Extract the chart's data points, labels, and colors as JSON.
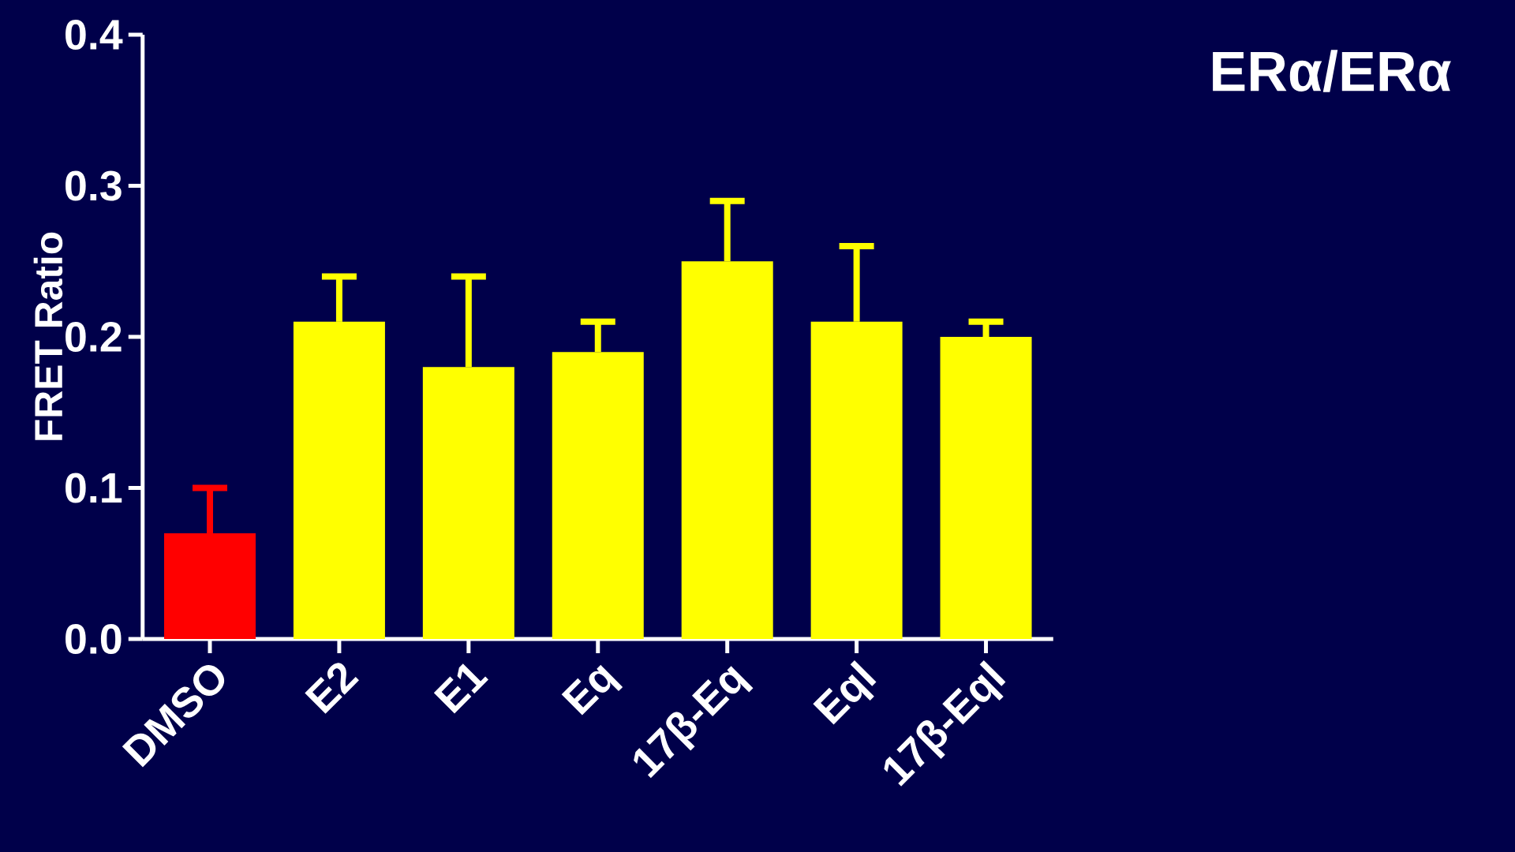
{
  "chart_data": {
    "type": "bar",
    "title": "ERα/ERα",
    "categories": [
      "DMSO",
      "E2",
      "E1",
      "Eq",
      "17β-Eq",
      "Eql",
      "17β-Eql"
    ],
    "values": [
      0.07,
      0.21,
      0.18,
      0.19,
      0.25,
      0.21,
      0.2
    ],
    "colors": [
      "#ff0000",
      "#ffff00",
      "#ffff00",
      "#ffff00",
      "#ffff00",
      "#ffff00",
      "#ffff00"
    ],
    "errors": [
      [
        0.07,
        0.1
      ],
      [
        0.21,
        0.24
      ],
      [
        0.18,
        0.24
      ],
      [
        0.19,
        0.21
      ],
      [
        0.25,
        0.29
      ],
      [
        0.21,
        0.26
      ],
      [
        0.2,
        0.21
      ]
    ],
    "ylabel": "FRET  Ratio",
    "ylim": [
      0,
      0.4
    ],
    "yticks": [
      {
        "value": 0,
        "label": "0.0"
      },
      {
        "value": 0.1,
        "label": "0.1"
      },
      {
        "value": 0.2,
        "label": "0.2"
      },
      {
        "value": 0.3,
        "label": "0.3"
      },
      {
        "value": 0.4,
        "label": "0.4"
      }
    ]
  }
}
